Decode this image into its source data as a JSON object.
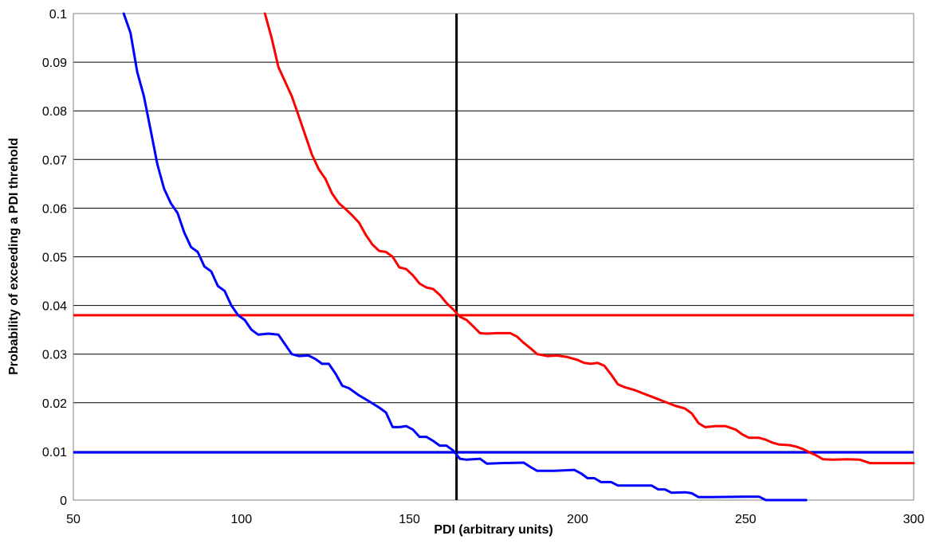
{
  "chart_data": {
    "type": "line",
    "title": "",
    "xlabel": "PDI (arbitrary units)",
    "ylabel": "Probability of exceeding a PDI threhold",
    "xlim": [
      50,
      300
    ],
    "ylim": [
      0,
      0.1
    ],
    "x_ticks": [
      "50",
      "100",
      "150",
      "200",
      "250",
      "300"
    ],
    "y_ticks": [
      "0",
      "0.01",
      "0.02",
      "0.03",
      "0.04",
      "0.05",
      "0.06",
      "0.07",
      "0.08",
      "0.09",
      "0.1"
    ],
    "grid": "horizontal",
    "legend": "none",
    "series": [
      {
        "color": "#0000ff",
        "points": [
          [
            65,
            0.1
          ],
          [
            67,
            0.096
          ],
          [
            69,
            0.088
          ],
          [
            71,
            0.083
          ],
          [
            73,
            0.076
          ],
          [
            75,
            0.069
          ],
          [
            77,
            0.064
          ],
          [
            79,
            0.061
          ],
          [
            81,
            0.059
          ],
          [
            83,
            0.055
          ],
          [
            85,
            0.052
          ],
          [
            87,
            0.051
          ],
          [
            89,
            0.048
          ],
          [
            91,
            0.047
          ],
          [
            93,
            0.044
          ],
          [
            95,
            0.043
          ],
          [
            97,
            0.04
          ],
          [
            99,
            0.038
          ],
          [
            101,
            0.037
          ],
          [
            103,
            0.035
          ],
          [
            105,
            0.034
          ],
          [
            108,
            0.0342
          ],
          [
            111,
            0.034
          ],
          [
            113,
            0.032
          ],
          [
            115,
            0.03
          ],
          [
            117,
            0.0296
          ],
          [
            120,
            0.0297
          ],
          [
            122,
            0.029
          ],
          [
            124,
            0.028
          ],
          [
            126,
            0.028
          ],
          [
            128,
            0.026
          ],
          [
            130,
            0.0235
          ],
          [
            132,
            0.023
          ],
          [
            135,
            0.0215
          ],
          [
            138,
            0.0203
          ],
          [
            141,
            0.019
          ],
          [
            143,
            0.018
          ],
          [
            145,
            0.015
          ],
          [
            147,
            0.015
          ],
          [
            149,
            0.0152
          ],
          [
            151,
            0.0145
          ],
          [
            153,
            0.013
          ],
          [
            155,
            0.013
          ],
          [
            157,
            0.0122
          ],
          [
            159,
            0.0112
          ],
          [
            161,
            0.0112
          ],
          [
            163,
            0.0102
          ],
          [
            165,
            0.0085
          ],
          [
            167,
            0.0083
          ],
          [
            171,
            0.0085
          ],
          [
            173,
            0.0075
          ],
          [
            177,
            0.0076
          ],
          [
            184,
            0.0077
          ],
          [
            186,
            0.0068
          ],
          [
            188,
            0.006
          ],
          [
            193,
            0.006
          ],
          [
            199,
            0.0062
          ],
          [
            201,
            0.0055
          ],
          [
            203,
            0.0045
          ],
          [
            205,
            0.0045
          ],
          [
            207,
            0.0037
          ],
          [
            210,
            0.0037
          ],
          [
            212,
            0.003
          ],
          [
            216,
            0.003
          ],
          [
            222,
            0.003
          ],
          [
            224,
            0.0022
          ],
          [
            226,
            0.0022
          ],
          [
            228,
            0.0015
          ],
          [
            232,
            0.0016
          ],
          [
            234,
            0.0014
          ],
          [
            236,
            0.0006
          ],
          [
            240,
            0.0006
          ],
          [
            250,
            0.0007
          ],
          [
            254,
            0.0007
          ],
          [
            256,
            0.0
          ],
          [
            268,
            0.0
          ]
        ]
      },
      {
        "color": "#ff0000",
        "points": [
          [
            107,
            0.1
          ],
          [
            109,
            0.095
          ],
          [
            111,
            0.089
          ],
          [
            113,
            0.086
          ],
          [
            115,
            0.083
          ],
          [
            117,
            0.079
          ],
          [
            119,
            0.075
          ],
          [
            121,
            0.071
          ],
          [
            123,
            0.068
          ],
          [
            125,
            0.066
          ],
          [
            127,
            0.063
          ],
          [
            129,
            0.061
          ],
          [
            131,
            0.0598
          ],
          [
            133,
            0.0585
          ],
          [
            135,
            0.057
          ],
          [
            137,
            0.0545
          ],
          [
            139,
            0.0525
          ],
          [
            141,
            0.0512
          ],
          [
            143,
            0.051
          ],
          [
            145,
            0.05
          ],
          [
            147,
            0.0478
          ],
          [
            149,
            0.0475
          ],
          [
            151,
            0.0462
          ],
          [
            153,
            0.0445
          ],
          [
            155,
            0.0437
          ],
          [
            157,
            0.0434
          ],
          [
            159,
            0.0422
          ],
          [
            161,
            0.0405
          ],
          [
            163,
            0.0392
          ],
          [
            165,
            0.0377
          ],
          [
            167,
            0.037
          ],
          [
            169,
            0.0357
          ],
          [
            171,
            0.0343
          ],
          [
            173,
            0.0342
          ],
          [
            176,
            0.0343
          ],
          [
            180,
            0.0343
          ],
          [
            182,
            0.0336
          ],
          [
            184,
            0.0323
          ],
          [
            186,
            0.0312
          ],
          [
            188,
            0.03
          ],
          [
            191,
            0.0296
          ],
          [
            194,
            0.0297
          ],
          [
            197,
            0.0294
          ],
          [
            200,
            0.0288
          ],
          [
            202,
            0.0282
          ],
          [
            204,
            0.028
          ],
          [
            206,
            0.0282
          ],
          [
            208,
            0.0276
          ],
          [
            210,
            0.0258
          ],
          [
            212,
            0.0238
          ],
          [
            214,
            0.0232
          ],
          [
            217,
            0.0226
          ],
          [
            220,
            0.0218
          ],
          [
            223,
            0.021
          ],
          [
            226,
            0.0202
          ],
          [
            229,
            0.0194
          ],
          [
            232,
            0.0188
          ],
          [
            234,
            0.0178
          ],
          [
            236,
            0.0158
          ],
          [
            238,
            0.015
          ],
          [
            241,
            0.0152
          ],
          [
            244,
            0.0152
          ],
          [
            247,
            0.0145
          ],
          [
            249,
            0.0135
          ],
          [
            251,
            0.0128
          ],
          [
            254,
            0.0128
          ],
          [
            256,
            0.0124
          ],
          [
            258,
            0.0118
          ],
          [
            260,
            0.0114
          ],
          [
            263,
            0.0113
          ],
          [
            265,
            0.011
          ],
          [
            267,
            0.0105
          ],
          [
            269,
            0.0098
          ],
          [
            271,
            0.0092
          ],
          [
            273,
            0.0084
          ],
          [
            276,
            0.0083
          ],
          [
            280,
            0.0084
          ],
          [
            284,
            0.0083
          ],
          [
            287,
            0.0076
          ],
          [
            300,
            0.0076
          ]
        ]
      }
    ],
    "reference_lines": {
      "horizontal": [
        {
          "y": 0.038,
          "color": "#ff0000"
        },
        {
          "y": 0.0098,
          "color": "#0000ff"
        }
      ],
      "vertical": [
        {
          "x": 164,
          "color": "#000000"
        }
      ]
    }
  }
}
